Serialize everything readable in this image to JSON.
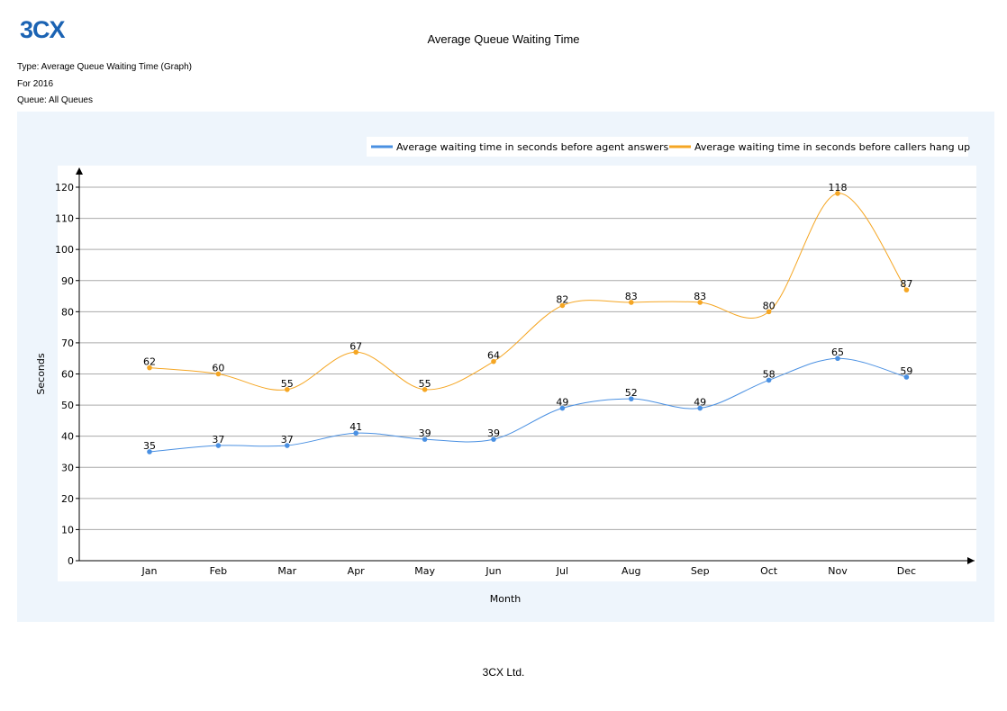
{
  "header": {
    "logo_text": "3CX",
    "title": "Average Queue Waiting Time",
    "type_line": "Type: Average Queue Waiting Time (Graph)",
    "for_line": "For 2016",
    "queue_line": "Queue: All Queues"
  },
  "footer": {
    "company": "3CX Ltd."
  },
  "colors": {
    "series_agent": "#4a90e2",
    "series_hangup": "#f5a623",
    "panel_bg": "#eef5fc",
    "brand": "#1b63b3"
  },
  "chart_data": {
    "type": "line",
    "title": "Average Queue Waiting Time",
    "xlabel": "Month",
    "ylabel": "Seconds",
    "ylim": [
      0,
      120
    ],
    "yticks": [
      0,
      10,
      20,
      30,
      40,
      50,
      60,
      70,
      80,
      90,
      100,
      110,
      120
    ],
    "grid": true,
    "legend_position": "top-right",
    "smooth": true,
    "categories": [
      "Jan",
      "Feb",
      "Mar",
      "Apr",
      "May",
      "Jun",
      "Jul",
      "Aug",
      "Sep",
      "Oct",
      "Nov",
      "Dec"
    ],
    "series": [
      {
        "name": "Average waiting time in seconds before agent answers",
        "color": "#4a90e2",
        "values": [
          35,
          37,
          37,
          41,
          39,
          39,
          49,
          52,
          49,
          58,
          65,
          59
        ]
      },
      {
        "name": "Average waiting time in seconds before callers hang up",
        "color": "#f5a623",
        "values": [
          62,
          60,
          55,
          67,
          55,
          64,
          82,
          83,
          83,
          80,
          118,
          87
        ]
      }
    ]
  }
}
